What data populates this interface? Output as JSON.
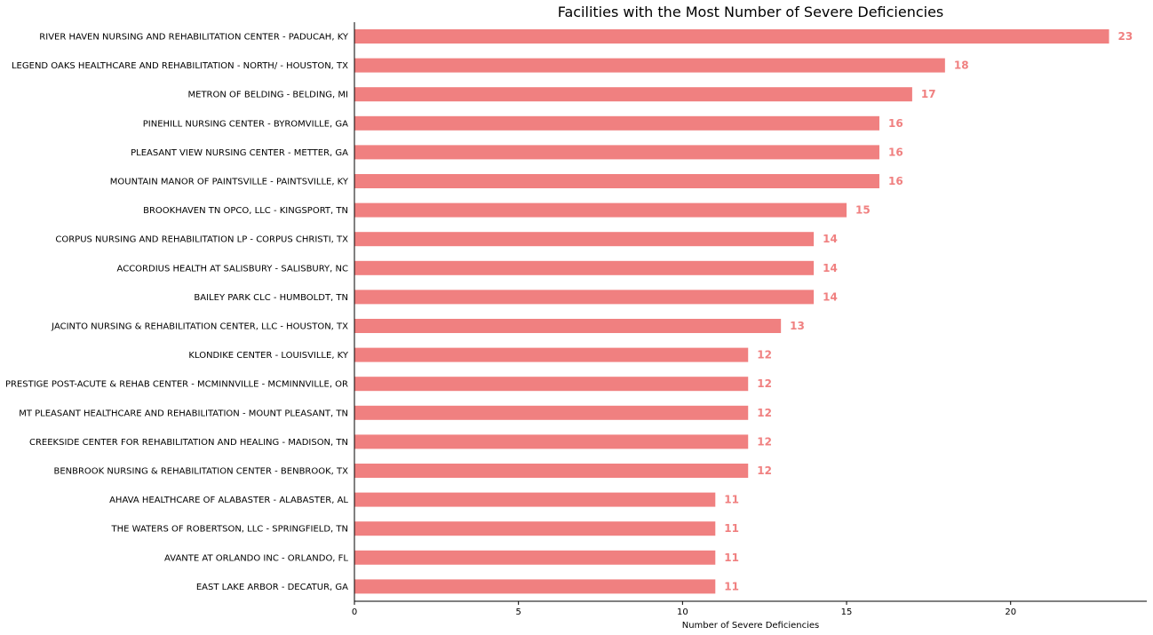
{
  "chart_data": {
    "type": "bar",
    "orientation": "horizontal",
    "title": "Facilities with the Most Number of Severe Deficiencies",
    "xlabel": "Number of Severe Deficiencies",
    "ylabel": "",
    "xlim": [
      0,
      24.15
    ],
    "xticks": [
      0,
      5,
      10,
      15,
      20
    ],
    "grid": false,
    "legend": "none",
    "bar_color": "#F08080",
    "label_color": "#F08080",
    "categories": [
      "RIVER HAVEN NURSING AND REHABILITATION CENTER - PADUCAH, KY",
      "LEGEND OAKS HEALTHCARE AND REHABILITATION - NORTH/ - HOUSTON, TX",
      "METRON OF BELDING - BELDING, MI",
      "PINEHILL NURSING CENTER - BYROMVILLE, GA",
      "PLEASANT VIEW NURSING CENTER - METTER, GA",
      "MOUNTAIN MANOR OF PAINTSVILLE - PAINTSVILLE, KY",
      "BROOKHAVEN TN OPCO, LLC - KINGSPORT, TN",
      "CORPUS NURSING AND REHABILITATION LP - CORPUS CHRISTI, TX",
      "ACCORDIUS HEALTH AT SALISBURY - SALISBURY, NC",
      "BAILEY PARK CLC - HUMBOLDT, TN",
      "JACINTO NURSING & REHABILITATION CENTER, LLC - HOUSTON, TX",
      "KLONDIKE CENTER - LOUISVILLE, KY",
      "PRESTIGE POST-ACUTE & REHAB CENTER - MCMINNVILLE - MCMINNVILLE, OR",
      "MT PLEASANT HEALTHCARE AND REHABILITATION - MOUNT PLEASANT, TN",
      "CREEKSIDE CENTER FOR REHABILITATION AND HEALING - MADISON, TN",
      "BENBROOK NURSING & REHABILITATION CENTER - BENBROOK, TX",
      "AHAVA HEALTHCARE OF ALABASTER - ALABASTER, AL",
      "THE WATERS OF ROBERTSON, LLC - SPRINGFIELD, TN",
      "AVANTE AT ORLANDO INC - ORLANDO, FL",
      "EAST LAKE ARBOR - DECATUR, GA"
    ],
    "values": [
      23,
      18,
      17,
      16,
      16,
      16,
      15,
      14,
      14,
      14,
      13,
      12,
      12,
      12,
      12,
      12,
      11,
      11,
      11,
      11
    ]
  }
}
